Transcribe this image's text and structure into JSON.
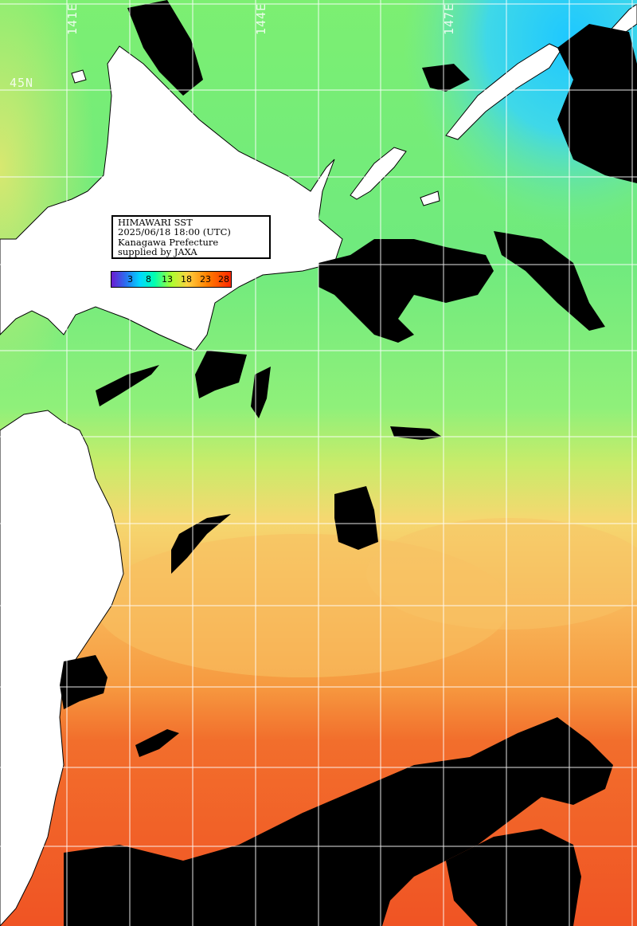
{
  "info": {
    "lines": [
      "HIMAWARI SST",
      "2025/06/18 18:00 (UTC)",
      "Kanagawa Prefecture",
      "supplied by JAXA"
    ]
  },
  "colorbar": {
    "ticks": [
      "3",
      "8",
      "13",
      "18",
      "23",
      "28"
    ]
  },
  "grid": {
    "lon_labels": [
      "141E",
      "144E",
      "147E"
    ],
    "lat_labels": [
      "45N"
    ]
  },
  "colors": {
    "land": "#ffffff",
    "cloud": "#000000",
    "grid": "#ffffff",
    "cold_water": "#3fd8f0",
    "cool_water": "#6ff08a",
    "mid_water": "#c8ec70",
    "warm_water": "#f7b450",
    "hot_water": "#f06a28"
  }
}
